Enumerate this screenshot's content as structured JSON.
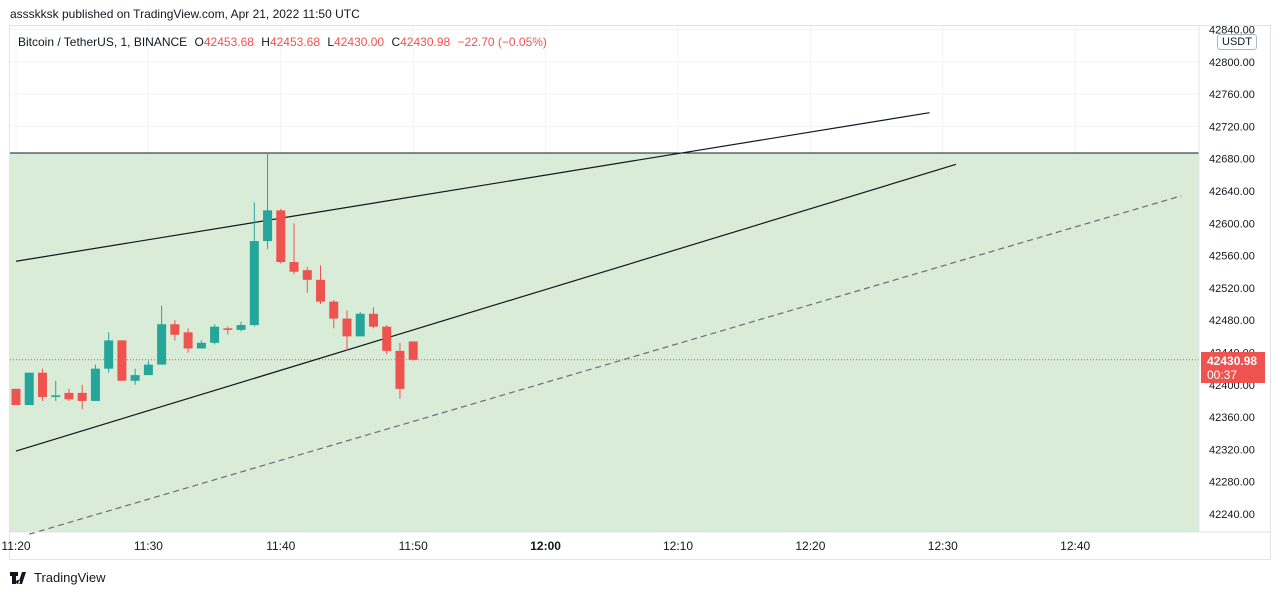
{
  "header": {
    "published": "asssk​ksk published on TradingView.com, Apr 21, 2022 11:50 UTC"
  },
  "legend": {
    "symbol": "Bitcoin / TetherUS, 1, BINANCE",
    "open_label": "O",
    "open": "42453.68",
    "high_label": "H",
    "high": "42453.68",
    "low_label": "L",
    "low": "42430.00",
    "close_label": "C",
    "close": "42430.98",
    "change": "−22.70 (−0.05%)"
  },
  "price_axis": {
    "unit": "USDT",
    "ticks": [
      "42840.00",
      "42800.00",
      "42760.00",
      "42720.00",
      "42680.00",
      "42640.00",
      "42600.00",
      "42560.00",
      "42520.00",
      "42480.00",
      "42440.00",
      "42400.00",
      "42360.00",
      "42320.00",
      "42280.00",
      "42240.00"
    ],
    "last_price": "42430.98",
    "countdown": "00:37"
  },
  "time_axis": {
    "ticks": [
      "11:20",
      "11:30",
      "11:40",
      "11:50",
      "12:00",
      "12:10",
      "12:20",
      "12:30",
      "12:40"
    ],
    "bold": [
      "12:00"
    ]
  },
  "footer": {
    "brand": "TradingView"
  },
  "colors": {
    "up": "#26a69a",
    "down": "#ef5350",
    "zone": "#d8ecd8",
    "line": "#131722"
  },
  "chart_data": {
    "type": "candlestick",
    "interval": "1m",
    "ylim": [
      42210,
      42850
    ],
    "candles": [
      {
        "time": "11:20",
        "o": 42395,
        "h": 42395,
        "l": 42375,
        "c": 42375
      },
      {
        "time": "11:21",
        "o": 42375,
        "h": 42415,
        "l": 42375,
        "c": 42415
      },
      {
        "time": "11:22",
        "o": 42415,
        "h": 42420,
        "l": 42380,
        "c": 42385
      },
      {
        "time": "11:23",
        "o": 42385,
        "h": 42405,
        "l": 42380,
        "c": 42387
      },
      {
        "time": "11:24",
        "o": 42390,
        "h": 42395,
        "l": 42380,
        "c": 42382
      },
      {
        "time": "11:25",
        "o": 42390,
        "h": 42400,
        "l": 42370,
        "c": 42380
      },
      {
        "time": "11:26",
        "o": 42380,
        "h": 42425,
        "l": 42380,
        "c": 42420
      },
      {
        "time": "11:27",
        "o": 42420,
        "h": 42465,
        "l": 42415,
        "c": 42455
      },
      {
        "time": "11:28",
        "o": 42455,
        "h": 42455,
        "l": 42405,
        "c": 42405
      },
      {
        "time": "11:29",
        "o": 42405,
        "h": 42420,
        "l": 42400,
        "c": 42412
      },
      {
        "time": "11:30",
        "o": 42412,
        "h": 42430,
        "l": 42412,
        "c": 42425
      },
      {
        "time": "11:31",
        "o": 42425,
        "h": 42498,
        "l": 42425,
        "c": 42475
      },
      {
        "time": "11:32",
        "o": 42475,
        "h": 42480,
        "l": 42455,
        "c": 42462
      },
      {
        "time": "11:33",
        "o": 42465,
        "h": 42470,
        "l": 42440,
        "c": 42445
      },
      {
        "time": "11:34",
        "o": 42445,
        "h": 42455,
        "l": 42445,
        "c": 42452
      },
      {
        "time": "11:35",
        "o": 42452,
        "h": 42475,
        "l": 42450,
        "c": 42472
      },
      {
        "time": "11:36",
        "o": 42470,
        "h": 42472,
        "l": 42462,
        "c": 42468
      },
      {
        "time": "11:37",
        "o": 42468,
        "h": 42478,
        "l": 42466,
        "c": 42474
      },
      {
        "time": "11:38",
        "o": 42474,
        "h": 42626,
        "l": 42472,
        "c": 42578
      },
      {
        "time": "11:39",
        "o": 42578,
        "h": 42688,
        "l": 42568,
        "c": 42616
      },
      {
        "time": "11:40",
        "o": 42616,
        "h": 42618,
        "l": 42550,
        "c": 42552
      },
      {
        "time": "11:41",
        "o": 42552,
        "h": 42600,
        "l": 42537,
        "c": 42540
      },
      {
        "time": "11:42",
        "o": 42542,
        "h": 42546,
        "l": 42514,
        "c": 42530
      },
      {
        "time": "11:43",
        "o": 42530,
        "h": 42548,
        "l": 42500,
        "c": 42503
      },
      {
        "time": "11:44",
        "o": 42503,
        "h": 42505,
        "l": 42470,
        "c": 42482
      },
      {
        "time": "11:45",
        "o": 42482,
        "h": 42492,
        "l": 42442,
        "c": 42460
      },
      {
        "time": "11:46",
        "o": 42460,
        "h": 42490,
        "l": 42460,
        "c": 42488
      },
      {
        "time": "11:47",
        "o": 42488,
        "h": 42496,
        "l": 42470,
        "c": 42472
      },
      {
        "time": "11:48",
        "o": 42472,
        "h": 42474,
        "l": 42438,
        "c": 42442
      },
      {
        "time": "11:49",
        "o": 42442,
        "h": 42452,
        "l": 42383,
        "c": 42395
      },
      {
        "time": "11:50",
        "o": 42453.68,
        "h": 42453.68,
        "l": 42430.0,
        "c": 42430.98
      }
    ],
    "drawings": [
      {
        "type": "trend_line",
        "from": {
          "time": "11:20",
          "price": 42553
        },
        "to": {
          "time": "12:29",
          "price": 42737
        }
      },
      {
        "type": "trend_line",
        "from": {
          "time": "11:20",
          "price": 42318
        },
        "to": {
          "time": "12:31",
          "price": 42673
        }
      },
      {
        "type": "trend_line_dashed",
        "from": {
          "time": "11:21",
          "price": 42215
        },
        "to": {
          "time": "12:48",
          "price": 42634
        }
      },
      {
        "type": "horizontal_line",
        "price": 42687
      },
      {
        "type": "zone",
        "price_top": 42687,
        "price_bottom": 42210
      }
    ]
  }
}
